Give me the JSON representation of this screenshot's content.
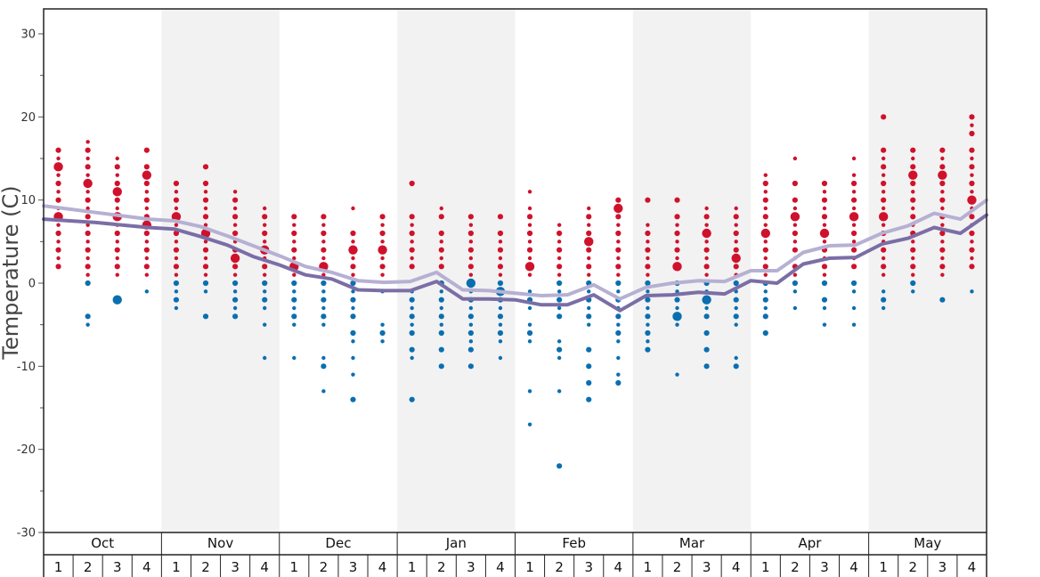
{
  "chart_data": {
    "type": "scatter",
    "title": "",
    "ylabel": "Temperature (C)",
    "xlabel": "",
    "ylim": [
      -30,
      33
    ],
    "y_ticks": [
      -30,
      -20,
      -10,
      0,
      10,
      20,
      30
    ],
    "months": [
      "Oct",
      "Nov",
      "Dec",
      "Jan",
      "Feb",
      "Mar",
      "Apr",
      "May"
    ],
    "week_labels": [
      "1",
      "2",
      "3",
      "4",
      "1",
      "2",
      "3",
      "4",
      "1",
      "2",
      "3",
      "4",
      "1",
      "2",
      "3",
      "4",
      "1",
      "2",
      "3",
      "4",
      "1",
      "2",
      "3",
      "4",
      "1",
      "2",
      "3",
      "4",
      "1",
      "2",
      "3",
      "4"
    ],
    "colors": {
      "warm": "#d0112b",
      "cold": "#0a6fb0",
      "line_high": "#b6b0d3",
      "line_low": "#7b6ea6",
      "band_shade": "#f2f2f2"
    },
    "series": [
      {
        "values": [
          9.3,
          8.9,
          8.5,
          8.1,
          7.7,
          7.5,
          6.8,
          5.7,
          4.5,
          3.3,
          2.0,
          1.3,
          0.3,
          0.1,
          0.2,
          1.3,
          -0.8,
          -0.9,
          -1.2,
          -1.5,
          -1.4,
          -0.2,
          -1.9,
          -0.5,
          0.0,
          0.3,
          0.2,
          1.5,
          1.5,
          3.7,
          4.5,
          4.6,
          6.0,
          6.9,
          8.4,
          7.7,
          10.0
        ]
      },
      {
        "values": [
          7.7,
          7.5,
          7.3,
          7.0,
          6.7,
          6.5,
          5.6,
          4.6,
          3.2,
          2.2,
          1.0,
          0.5,
          -0.8,
          -0.9,
          -0.9,
          0.2,
          -1.9,
          -1.9,
          -2.0,
          -2.6,
          -2.6,
          -1.4,
          -3.3,
          -1.5,
          -1.4,
          -1.1,
          -1.3,
          0.3,
          0.0,
          2.3,
          3.0,
          3.1,
          4.7,
          5.4,
          6.7,
          6.0,
          8.2
        ]
      }
    ],
    "dot_columns": [
      {
        "red": [
          16,
          15,
          14,
          13,
          12,
          11,
          10,
          9,
          8,
          7,
          6,
          5,
          4,
          3,
          2
        ],
        "red_big": [
          14,
          8
        ],
        "blue": [],
        "blue_big": []
      },
      {
        "red": [
          17,
          16,
          15,
          14,
          13,
          12,
          11,
          10,
          9,
          8,
          7,
          6,
          5,
          4,
          3,
          2,
          1
        ],
        "red_big": [
          12
        ],
        "blue": [
          0,
          -4,
          -5
        ],
        "blue_big": []
      },
      {
        "red": [
          15,
          14,
          13,
          12,
          11,
          10,
          9,
          8,
          7,
          6,
          5,
          4,
          3,
          2,
          1
        ],
        "red_big": [
          11,
          8
        ],
        "blue": [
          -2
        ],
        "blue_big": [
          -2
        ]
      },
      {
        "red": [
          16,
          14,
          13,
          12,
          11,
          10,
          9,
          8,
          7,
          6,
          5,
          4,
          3,
          2,
          1
        ],
        "red_big": [
          13,
          7
        ],
        "blue": [
          -1
        ],
        "blue_big": []
      },
      {
        "red": [
          12,
          11,
          10,
          9,
          8,
          7,
          6,
          5,
          4,
          3,
          2,
          1
        ],
        "red_big": [
          8
        ],
        "blue": [
          0,
          -1,
          -2,
          -3
        ],
        "blue_big": []
      },
      {
        "red": [
          14,
          12,
          11,
          10,
          9,
          8,
          7,
          6,
          5,
          4,
          3,
          2,
          1
        ],
        "red_big": [
          6
        ],
        "blue": [
          0,
          -1,
          -4
        ],
        "blue_big": []
      },
      {
        "red": [
          11,
          10,
          9,
          8,
          7,
          6,
          5,
          4,
          3,
          2,
          1
        ],
        "red_big": [
          3
        ],
        "blue": [
          0,
          -1,
          -2,
          -3,
          -4
        ],
        "blue_big": []
      },
      {
        "red": [
          9,
          8,
          7,
          6,
          5,
          4,
          3,
          2,
          1
        ],
        "red_big": [
          4
        ],
        "blue": [
          0,
          -1,
          -2,
          -3,
          -5,
          -9
        ],
        "blue_big": []
      },
      {
        "red": [
          8,
          7,
          6,
          5,
          4,
          3,
          2,
          1
        ],
        "red_big": [
          2
        ],
        "blue": [
          0,
          -1,
          -2,
          -3,
          -4,
          -5,
          -9
        ],
        "blue_big": []
      },
      {
        "red": [
          8,
          7,
          6,
          5,
          4,
          3,
          2,
          1
        ],
        "red_big": [
          2
        ],
        "blue": [
          0,
          -1,
          -2,
          -3,
          -4,
          -5,
          -9,
          -10,
          -13
        ],
        "blue_big": []
      },
      {
        "red": [
          9,
          6,
          5,
          4,
          3,
          2,
          1
        ],
        "red_big": [
          4
        ],
        "blue": [
          0,
          -1,
          -2,
          -3,
          -4,
          -6,
          -7,
          -9,
          -11,
          -14
        ],
        "blue_big": []
      },
      {
        "red": [
          8,
          7,
          6,
          5,
          4,
          3,
          2,
          1
        ],
        "red_big": [
          4
        ],
        "blue": [
          -1,
          -5,
          -6,
          -7
        ],
        "blue_big": []
      },
      {
        "red": [
          12,
          8,
          7,
          6,
          5,
          4,
          3,
          2
        ],
        "red_big": [
          1
        ],
        "blue": [
          -1,
          -2,
          -3,
          -4,
          -5,
          -6,
          -8,
          -9,
          -14
        ],
        "blue_big": []
      },
      {
        "red": [
          9,
          8,
          6,
          5,
          4,
          3,
          2
        ],
        "red_big": [
          1
        ],
        "blue": [
          0,
          -1,
          -2,
          -3,
          -4,
          -5,
          -6,
          -8,
          -10
        ],
        "blue_big": []
      },
      {
        "red": [
          8,
          7,
          6,
          5,
          4,
          3,
          2,
          1
        ],
        "red_big": [],
        "blue": [
          0,
          -1,
          -2,
          -3,
          -4,
          -5,
          -6,
          -7,
          -8,
          -10
        ],
        "blue_big": [
          0
        ]
      },
      {
        "red": [
          8,
          6,
          5,
          4,
          3,
          2,
          1
        ],
        "red_big": [],
        "blue": [
          0,
          -1,
          -2,
          -3,
          -4,
          -5,
          -6,
          -7,
          -9
        ],
        "blue_big": [
          -1
        ]
      },
      {
        "red": [
          11,
          9,
          8,
          7,
          6,
          5,
          4,
          3,
          2,
          1
        ],
        "red_big": [
          2
        ],
        "blue": [
          -1,
          -2,
          -3,
          -5,
          -6,
          -7,
          -13,
          -17
        ],
        "blue_big": []
      },
      {
        "red": [
          7,
          6,
          5,
          4,
          3,
          2,
          1
        ],
        "red_big": [],
        "blue": [
          0,
          -1,
          -2,
          -3,
          -4,
          -7,
          -8,
          -9,
          -13,
          -22
        ],
        "blue_big": []
      },
      {
        "red": [
          9,
          8,
          7,
          6,
          5,
          4,
          3,
          2,
          1
        ],
        "red_big": [
          5
        ],
        "blue": [
          0,
          -1,
          -2,
          -3,
          -4,
          -5,
          -8,
          -10,
          -12,
          -14
        ],
        "blue_big": []
      },
      {
        "red": [
          10,
          9,
          8,
          7,
          6,
          5,
          4,
          3,
          2,
          1
        ],
        "red_big": [
          9
        ],
        "blue": [
          0,
          -1,
          -2,
          -3,
          -4,
          -5,
          -6,
          -7,
          -9,
          -11,
          -12
        ],
        "blue_big": []
      },
      {
        "red": [
          10,
          7,
          6,
          5,
          4,
          3,
          2,
          1
        ],
        "red_big": [],
        "blue": [
          0,
          -1,
          -2,
          -3,
          -4,
          -5,
          -6,
          -7,
          -8
        ],
        "blue_big": []
      },
      {
        "red": [
          10,
          8,
          7,
          6,
          5,
          4,
          3,
          2
        ],
        "red_big": [
          2
        ],
        "blue": [
          0,
          -1,
          -2,
          -3,
          -4,
          -5,
          -11
        ],
        "blue_big": [
          -4
        ]
      },
      {
        "red": [
          9,
          8,
          7,
          6,
          5,
          4,
          3,
          2,
          1
        ],
        "red_big": [
          6
        ],
        "blue": [
          0,
          -1,
          -2,
          -3,
          -4,
          -6,
          -8,
          -10
        ],
        "blue_big": [
          -2
        ]
      },
      {
        "red": [
          9,
          8,
          7,
          6,
          5,
          4,
          3,
          2,
          1
        ],
        "red_big": [
          3
        ],
        "blue": [
          0,
          -1,
          -2,
          -3,
          -4,
          -5,
          -9,
          -10
        ],
        "blue_big": []
      },
      {
        "red": [
          13,
          12,
          11,
          10,
          9,
          8,
          7,
          6,
          5,
          4,
          3,
          2,
          1
        ],
        "red_big": [
          6
        ],
        "blue": [
          0,
          -1,
          -2,
          -3,
          -4,
          -6
        ],
        "blue_big": []
      },
      {
        "red": [
          15,
          12,
          10,
          9,
          8,
          7,
          6,
          5,
          4,
          3,
          2,
          1
        ],
        "red_big": [
          8
        ],
        "blue": [
          0,
          -1,
          -3
        ],
        "blue_big": []
      },
      {
        "red": [
          12,
          11,
          10,
          9,
          8,
          7,
          6,
          5,
          4,
          3,
          2,
          1
        ],
        "red_big": [
          6
        ],
        "blue": [
          0,
          -2,
          -3,
          -5
        ],
        "blue_big": []
      },
      {
        "red": [
          15,
          13,
          12,
          11,
          10,
          9,
          8,
          7,
          6,
          5,
          4,
          3,
          2
        ],
        "red_big": [
          8
        ],
        "blue": [
          0,
          -1,
          -3,
          -5
        ],
        "blue_big": []
      },
      {
        "red": [
          20,
          16,
          15,
          14,
          13,
          12,
          11,
          10,
          9,
          8,
          7,
          6,
          5,
          4,
          3,
          2,
          1
        ],
        "red_big": [
          8
        ],
        "blue": [
          -1,
          -2,
          -3
        ],
        "blue_big": []
      },
      {
        "red": [
          16,
          15,
          14,
          13,
          12,
          11,
          10,
          9,
          8,
          7,
          6,
          5,
          4,
          3,
          2,
          1
        ],
        "red_big": [
          13
        ],
        "blue": [
          0,
          -1
        ],
        "blue_big": []
      },
      {
        "red": [
          16,
          15,
          14,
          13,
          12,
          11,
          10,
          9,
          8,
          7,
          6,
          5,
          4,
          3,
          2,
          1
        ],
        "red_big": [
          13
        ],
        "blue": [
          -2
        ],
        "blue_big": []
      },
      {
        "red": [
          20,
          19,
          18,
          16,
          15,
          14,
          13,
          12,
          11,
          10,
          9,
          8,
          7,
          6,
          5,
          4,
          3,
          2
        ],
        "red_big": [
          10
        ],
        "blue": [
          -1
        ],
        "blue_big": []
      }
    ]
  }
}
